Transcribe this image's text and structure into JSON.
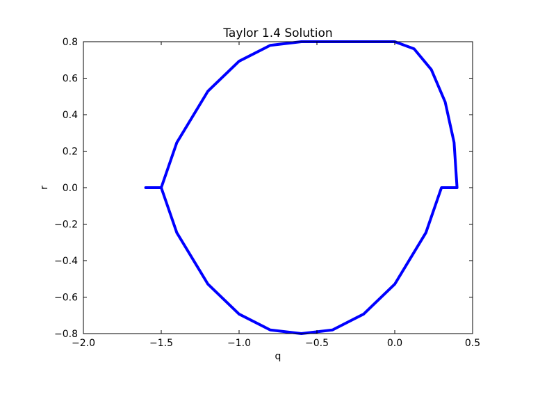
{
  "chart_data": {
    "type": "line",
    "title": "Taylor 1.4 Solution",
    "xlabel": "q",
    "ylabel": "r",
    "xlim": [
      -2.0,
      0.5
    ],
    "ylim": [
      -0.8,
      0.8
    ],
    "x_ticks": [
      -2.0,
      -1.5,
      -1.0,
      -0.5,
      0.0,
      0.5
    ],
    "x_tick_labels": [
      "−2.0",
      "−1.5",
      "−1.0",
      "−0.5",
      "0.0",
      "0.5"
    ],
    "y_ticks": [
      0.8,
      0.6,
      0.4,
      0.2,
      0.0,
      -0.2,
      -0.4,
      -0.6,
      -0.8
    ],
    "y_tick_labels": [
      "0.8",
      "0.6",
      "0.4",
      "0.2",
      "0.0",
      "−0.2",
      "−0.4",
      "−0.6",
      "−0.8"
    ],
    "grid": false,
    "series": [
      {
        "color": "#0000ff",
        "x": [
          0.4,
          0.381,
          0.324,
          0.235,
          0.124,
          -0.0,
          -0.124,
          -0.235,
          -0.324,
          -0.381,
          -0.4,
          -0.6,
          -0.8,
          -1.0,
          -1.2,
          -1.4,
          -1.5,
          -1.55,
          -1.6,
          -1.55,
          -1.5,
          -1.4,
          -1.2,
          -1.0,
          -0.8,
          -0.6,
          -0.4,
          -0.2,
          0.0,
          0.2,
          0.3,
          0.35,
          0.4
        ],
        "y": [
          0.0,
          0.248,
          0.469,
          0.647,
          0.761,
          0.8,
          0.8,
          0.8,
          0.8,
          0.8,
          0.8,
          0.8,
          0.78,
          0.693,
          0.529,
          0.247,
          0.0,
          -0.0,
          -0.0,
          -0.0,
          -0.0,
          -0.247,
          -0.529,
          -0.693,
          -0.78,
          -0.8,
          -0.78,
          -0.693,
          -0.529,
          -0.247,
          -0.0,
          -0.0,
          0.0
        ]
      }
    ]
  }
}
